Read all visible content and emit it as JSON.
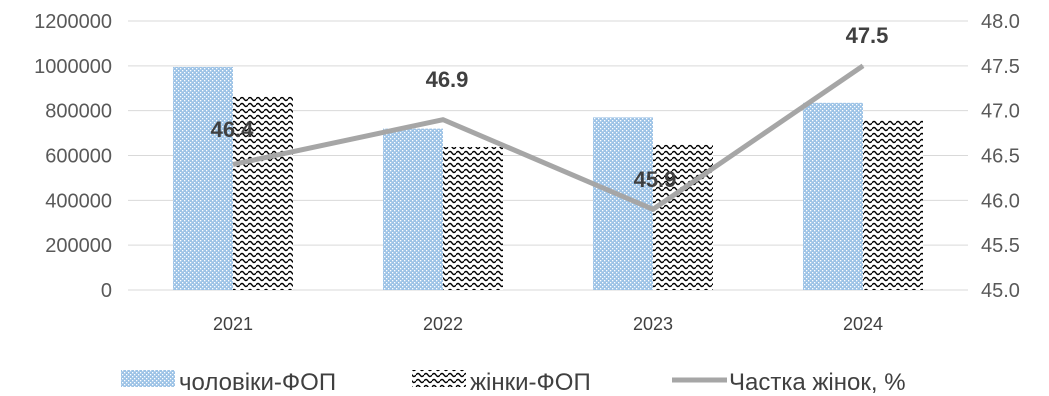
{
  "chart_data": {
    "type": "bar",
    "categories": [
      "2021",
      "2022",
      "2023",
      "2024"
    ],
    "series": [
      {
        "name": "чоловіки-ФОП",
        "type": "bar",
        "axis": "left",
        "color": "#9dc3e6",
        "pattern": "dotted",
        "values": [
          995000,
          720000,
          770000,
          835000
        ]
      },
      {
        "name": "жінки-ФОП",
        "type": "bar",
        "axis": "left",
        "color": "#000000",
        "pattern": "wave",
        "values": [
          862000,
          638000,
          648000,
          756000
        ]
      },
      {
        "name": "Частка жінок, %",
        "type": "line",
        "axis": "right",
        "color": "#a6a6a6",
        "values": [
          46.4,
          46.9,
          45.9,
          47.5
        ]
      }
    ],
    "data_labels": [
      "46.4",
      "46.9",
      "45.9",
      "47.5"
    ],
    "left_axis": {
      "min": 0,
      "max": 1200000,
      "step": 200000,
      "ticks": [
        "0",
        "200000",
        "400000",
        "600000",
        "800000",
        "1000000",
        "1200000"
      ]
    },
    "right_axis": {
      "min": 45.0,
      "max": 48.0,
      "step": 0.5,
      "ticks": [
        "45.0",
        "45.5",
        "46.0",
        "46.5",
        "47.0",
        "47.5",
        "48.0"
      ]
    },
    "grid": true,
    "legend_position": "bottom"
  }
}
